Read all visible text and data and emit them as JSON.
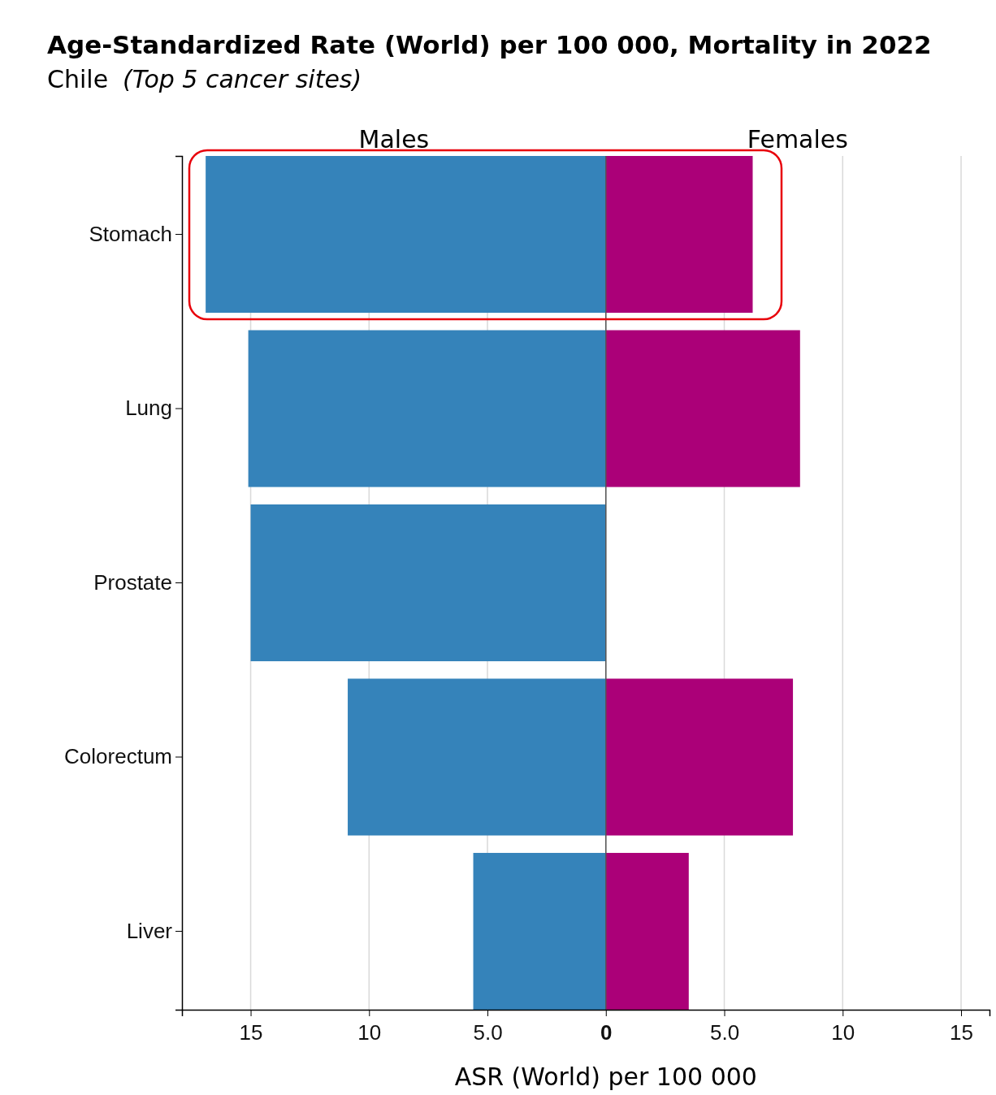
{
  "chart_data": {
    "type": "bar",
    "orientation": "horizontal",
    "title": "Age-Standardized Rate (World) per 100 000, Mortality in 2022",
    "subtitle": "Chile  (Top 5 cancer sites)",
    "xlabel": "ASR (World) per 100 000",
    "categories": [
      "Stomach",
      "Lung",
      "Prostate",
      "Colorectum",
      "Liver"
    ],
    "series": [
      {
        "name": "Males",
        "color": "#3583ba",
        "values": [
          -16.9,
          -15.1,
          -15.0,
          -10.9,
          -5.6
        ]
      },
      {
        "name": "Females",
        "color": "#ab0078",
        "values": [
          6.2,
          8.2,
          null,
          7.9,
          3.5
        ]
      }
    ],
    "xlim": [
      -17.9,
      16.2
    ],
    "xticks": [
      {
        "value": -15,
        "label": "15"
      },
      {
        "value": -10,
        "label": "10"
      },
      {
        "value": -5,
        "label": "5.0"
      },
      0,
      {
        "value": 5,
        "label": "5.0"
      },
      10,
      15
    ],
    "grid": "x",
    "stacked": true
  }
}
